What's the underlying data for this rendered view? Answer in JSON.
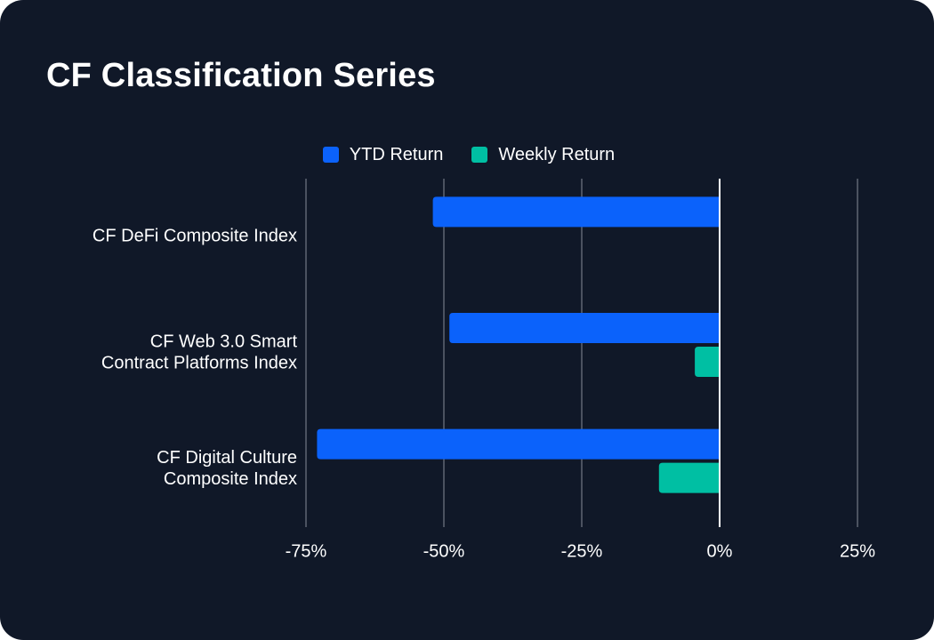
{
  "colors": {
    "background": "#101828",
    "ytd": "#0b62fb",
    "weekly": "#00bfa3",
    "grid": "#4b5260",
    "zero_line": "#ffffff",
    "text": "#ffffff"
  },
  "chart_data": {
    "type": "bar",
    "orientation": "horizontal",
    "title": "CF Classification Series",
    "categories": [
      [
        "CF DeFi Composite Index"
      ],
      [
        "CF Web 3.0 Smart",
        "Contract Platforms Index"
      ],
      [
        "CF Digital Culture",
        "Composite Index"
      ]
    ],
    "series": [
      {
        "name": "YTD Return",
        "color": "#0b62fb",
        "values": [
          -52,
          -49,
          -73
        ]
      },
      {
        "name": "Weekly Return",
        "color": "#00bfa3",
        "values": [
          null,
          -4.5,
          -11
        ]
      }
    ],
    "xlim": [
      -75,
      25
    ],
    "xticks": [
      -75,
      -50,
      -25,
      0,
      25
    ],
    "xtick_labels": [
      "-75%",
      "-50%",
      "-25%",
      "0%",
      "25%"
    ],
    "xlabel": "",
    "ylabel": "",
    "grid": true,
    "legend": "top-center"
  }
}
